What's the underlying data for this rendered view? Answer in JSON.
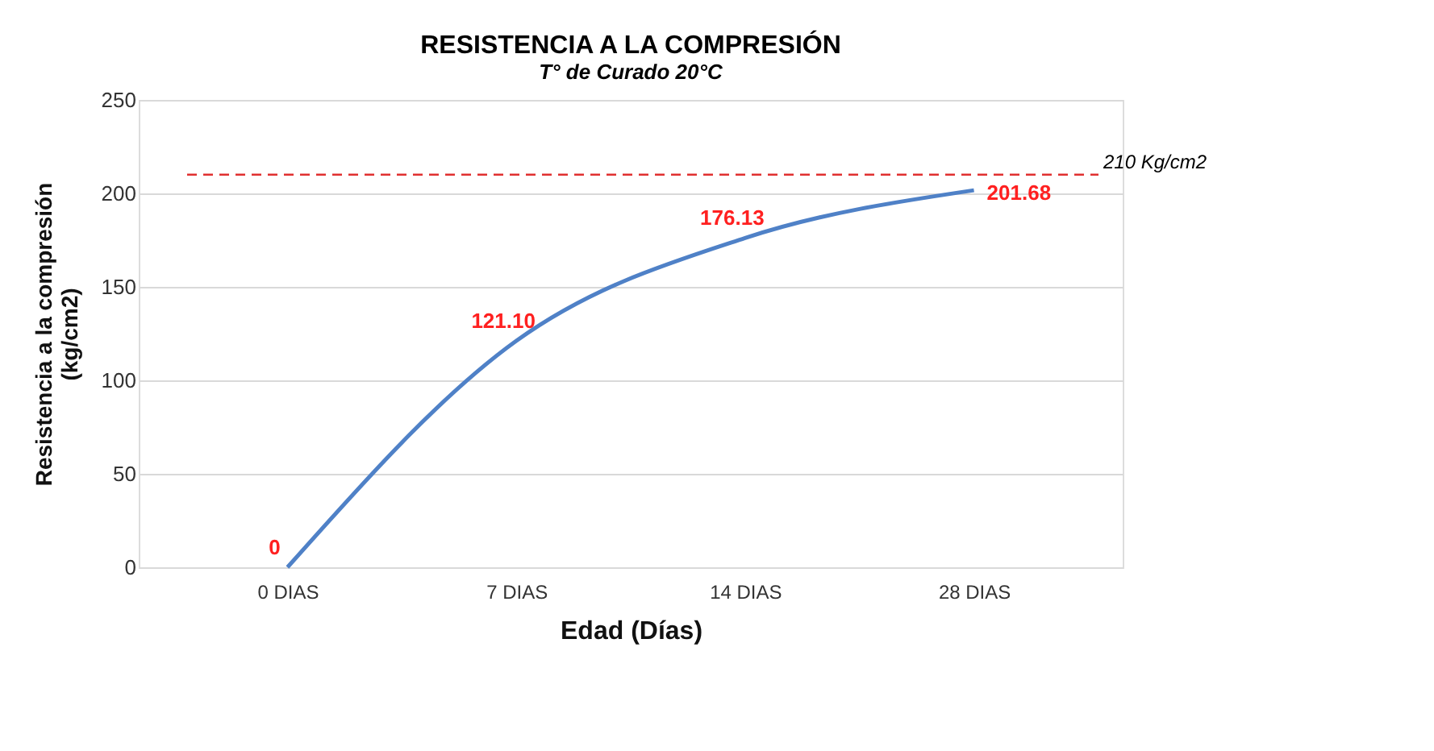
{
  "chart_data": {
    "type": "line",
    "title": "RESISTENCIA A LA COMPRESIÓN",
    "subtitle": "T° de Curado 20°C",
    "xlabel": "Edad (Días)",
    "ylabel": "Resistencia a la compresión (kg/cm2)",
    "categories": [
      "0 DIAS",
      "7 DIAS",
      "14 DIAS",
      "28 DIAS"
    ],
    "series": [
      {
        "color": "#4f81c7",
        "values": [
          0,
          121.1,
          176.13,
          201.68
        ],
        "value_labels": [
          "0",
          "121.10",
          "176.13",
          "201.68"
        ]
      }
    ],
    "ylim": [
      0,
      250
    ],
    "yticks": [
      0,
      50,
      100,
      150,
      200,
      250
    ],
    "grid": "y",
    "marker": "none",
    "line_style": "solid",
    "ref_lines": [
      {
        "axis": "y",
        "value": 210,
        "label": "210 Kg/cm2",
        "color": "#e03030",
        "line_style": "dashed"
      }
    ]
  }
}
